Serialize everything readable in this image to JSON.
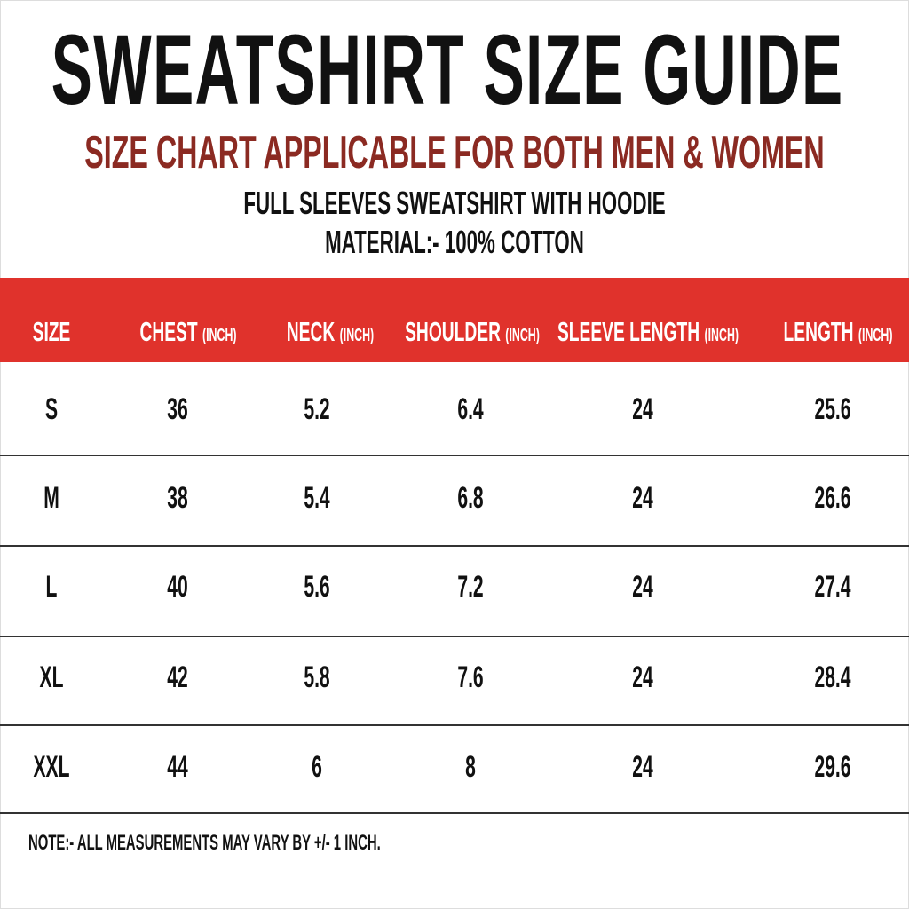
{
  "header": {
    "title": "SWEATSHIRT SIZE GUIDE",
    "subtitle": "SIZE CHART APPLICABLE FOR BOTH MEN & WOMEN",
    "product": "FULL SLEEVES SWEATSHIRT WITH HOODIE",
    "material": "MATERIAL:- 100% COTTON"
  },
  "colors": {
    "band": "#e0322c",
    "subtitle": "#8b2a22"
  },
  "table": {
    "columns": [
      {
        "label": "SIZE",
        "unit": ""
      },
      {
        "label": "CHEST",
        "unit": "(INCH)"
      },
      {
        "label": "NECK",
        "unit": "(INCH)"
      },
      {
        "label": "SHOULDER",
        "unit": "(INCH)"
      },
      {
        "label": "SLEEVE LENGTH",
        "unit": "(INCH)"
      },
      {
        "label": "LENGTH",
        "unit": "(INCH)"
      }
    ],
    "rows": [
      [
        "S",
        "36",
        "5.2",
        "6.4",
        "24",
        "25.6"
      ],
      [
        "M",
        "38",
        "5.4",
        "6.8",
        "24",
        "26.6"
      ],
      [
        "L",
        "40",
        "5.6",
        "7.2",
        "24",
        "27.4"
      ],
      [
        "XL",
        "42",
        "5.8",
        "7.6",
        "24",
        "28.4"
      ],
      [
        "XXL",
        "44",
        "6",
        "8",
        "24",
        "29.6"
      ]
    ]
  },
  "note": "NOTE:- ALL MEASUREMENTS MAY VARY BY +/- 1 INCH."
}
